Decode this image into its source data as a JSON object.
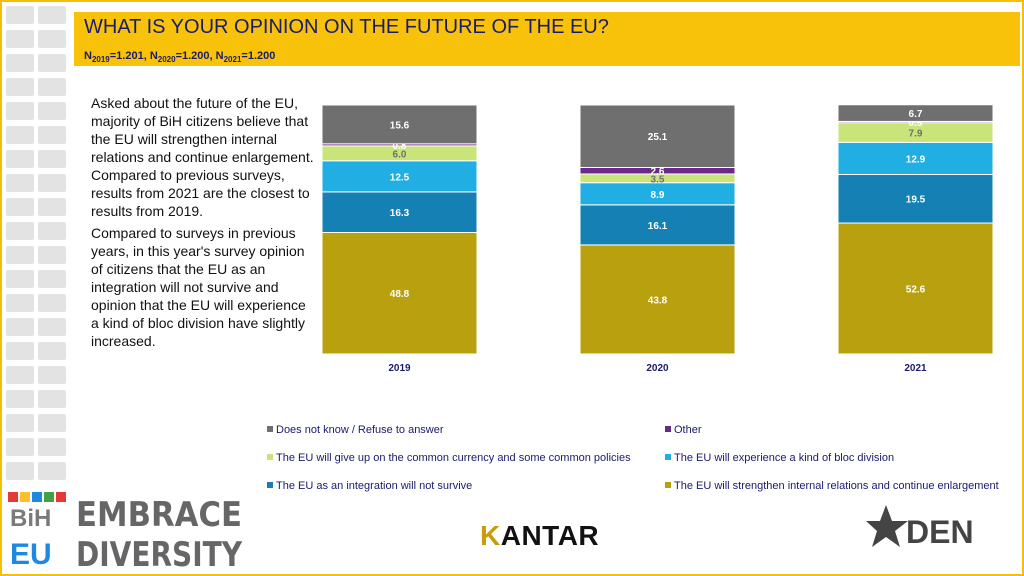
{
  "header": {
    "title": "WHAT IS YOUR OPINION ON THE FUTURE OF THE EU?",
    "n_items": [
      {
        "base": "N",
        "sub": "2019",
        "value": "=1.201, "
      },
      {
        "base": "N",
        "sub": "2020",
        "value": "=1.200, "
      },
      {
        "base": "N",
        "sub": "2021",
        "value": "=1.200"
      }
    ]
  },
  "description": {
    "p1": "Asked about the future of the EU, majority of BiH citizens believe that the EU will strengthen internal relations and continue enlargement. Compared to previous surveys, results from 2021 are the closest to results from 2019.",
    "p2": "Compared to surveys in previous years, in this year's survey opinion of citizens that the EU as an integration will not survive and opinion that the EU will experience a kind of bloc division have slightly increased."
  },
  "chart_data": {
    "type": "bar",
    "stacked": true,
    "percent": true,
    "categories": [
      "2019",
      "2020",
      "2021"
    ],
    "series": [
      {
        "name": "The EU will strengthen internal relations and continue enlargement",
        "color": "#b9a00f",
        "values": [
          48.8,
          43.8,
          52.6
        ]
      },
      {
        "name": "The EU as an integration will not survive",
        "color": "#1480b4",
        "values": [
          16.3,
          16.1,
          19.5
        ]
      },
      {
        "name": "The EU will experience a kind of bloc division",
        "color": "#21afe3",
        "values": [
          12.5,
          8.9,
          12.9
        ]
      },
      {
        "name": "The EU will give up on the common currency and some common policies",
        "color": "#c9e57a",
        "values": [
          6.0,
          3.5,
          7.9
        ]
      },
      {
        "name": "Other",
        "color": "#6a2a8c",
        "values": [
          0.8,
          2.6,
          0.5
        ]
      },
      {
        "name": "Does not know / Refuse to answer",
        "color": "#6f6f6f",
        "values": [
          15.6,
          25.1,
          6.7
        ]
      }
    ],
    "legend_order": [
      5,
      4,
      3,
      2,
      1,
      0
    ],
    "xlabel": "",
    "ylabel": "",
    "ylim": [
      0,
      100
    ]
  },
  "logos": {
    "embrace_line1": "EMBRACE",
    "embrace_line2": "DIVERSITY",
    "bih_top": "BiH",
    "bih_bottom": "EU",
    "kantar_first": "K",
    "kantar_rest": "ANTAR",
    "den": "DEN"
  },
  "colors": {
    "accent": "#f9c20a",
    "title_text": "#1b1b6e"
  }
}
